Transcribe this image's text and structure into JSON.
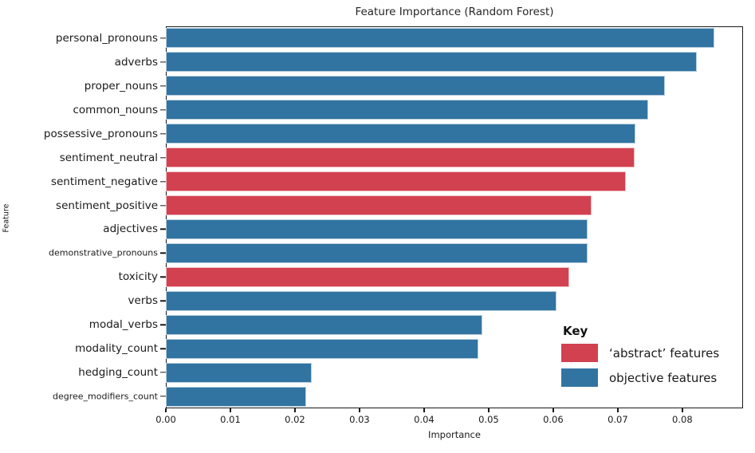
{
  "chart": {
    "title": "Feature Importance (Random Forest)",
    "xlabel": "Importance",
    "ylabel": "Feature"
  },
  "legend": {
    "title": "Key",
    "items": [
      {
        "label": "‘abstract’ features",
        "color": "#d24150",
        "group": "abstract"
      },
      {
        "label": "objective features",
        "color": "#3274a1",
        "group": "objective"
      }
    ]
  },
  "chart_data": {
    "type": "bar",
    "orientation": "horizontal",
    "title": "Feature Importance (Random Forest)",
    "xlabel": "Importance",
    "ylabel": "Feature",
    "grid": false,
    "legend_position": "inside lower-right, frameless",
    "xlim": [
      0,
      0.0894
    ],
    "x_ticks": [
      0,
      0.01,
      0.02,
      0.03,
      0.04,
      0.05,
      0.06,
      0.07,
      0.08
    ],
    "x_tick_labels": [
      "0.00",
      "0.01",
      "0.02",
      "0.03",
      "0.04",
      "0.05",
      "0.06",
      "0.07",
      "0.08"
    ],
    "colors": {
      "abstract": "#d24150",
      "objective": "#3274a1"
    },
    "features": [
      {
        "label": "personal_pronouns",
        "value": 0.085,
        "group": "objective"
      },
      {
        "label": "adverbs",
        "value": 0.0822,
        "group": "objective"
      },
      {
        "label": "proper_nouns",
        "value": 0.0773,
        "group": "objective"
      },
      {
        "label": "common_nouns",
        "value": 0.0747,
        "group": "objective"
      },
      {
        "label": "possessive_pronouns",
        "value": 0.0727,
        "group": "objective"
      },
      {
        "label": "sentiment_neutral",
        "value": 0.0726,
        "group": "abstract"
      },
      {
        "label": "sentiment_negative",
        "value": 0.0713,
        "group": "abstract"
      },
      {
        "label": "sentiment_positive",
        "value": 0.0659,
        "group": "abstract"
      },
      {
        "label": "adjectives",
        "value": 0.0653,
        "group": "objective"
      },
      {
        "label": "demonstrative_pronouns",
        "value": 0.0653,
        "group": "objective"
      },
      {
        "label": "toxicity",
        "value": 0.0625,
        "group": "abstract"
      },
      {
        "label": "verbs",
        "value": 0.0605,
        "group": "objective"
      },
      {
        "label": "modal_verbs",
        "value": 0.049,
        "group": "objective"
      },
      {
        "label": "modality_count",
        "value": 0.0484,
        "group": "objective"
      },
      {
        "label": "hedging_count",
        "value": 0.0226,
        "group": "objective"
      },
      {
        "label": "degree_modifiers_count",
        "value": 0.0217,
        "group": "objective"
      }
    ]
  }
}
